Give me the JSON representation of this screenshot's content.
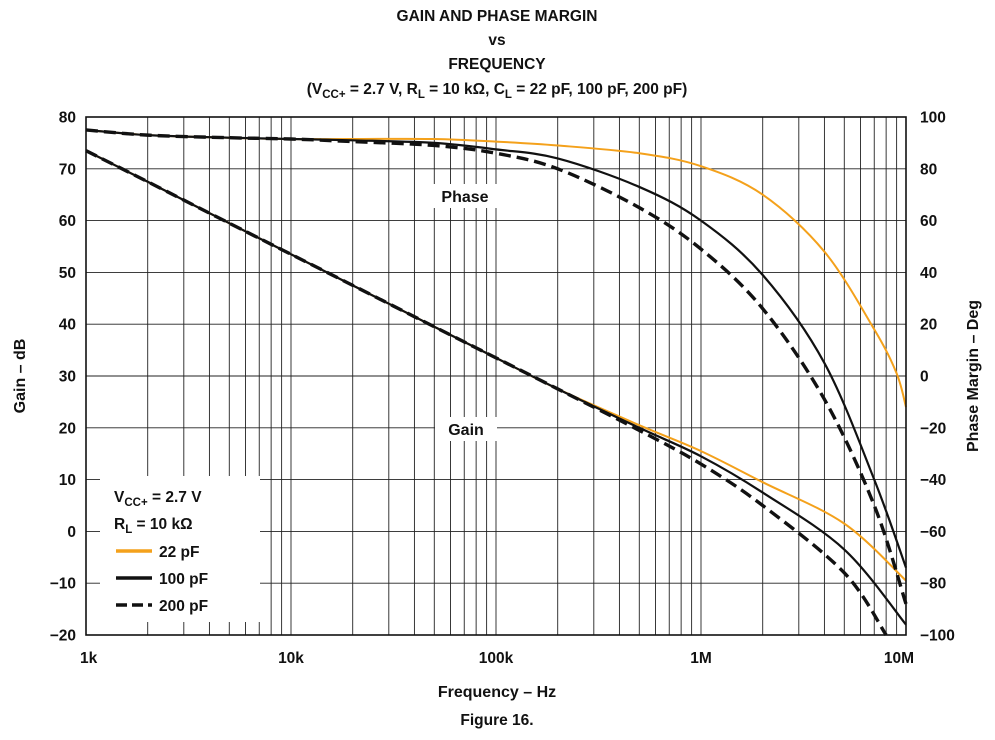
{
  "chart_data": {
    "type": "line",
    "title": {
      "line1": "GAIN AND PHASE MARGIN",
      "line2": "vs",
      "line3": "FREQUENCY",
      "conditions": [
        "(V",
        "CC+",
        " = 2.7 V, R",
        "L",
        " = 10 kΩ, C",
        "L",
        " = 22 pF, 100 pF, 200 pF)"
      ]
    },
    "figure_label": "Figure 16.",
    "x_axis": {
      "label": "Frequency – Hz",
      "scale": "log",
      "range": [
        1000,
        10000000
      ],
      "ticks": [
        {
          "value": 1000,
          "label": "1k"
        },
        {
          "value": 10000,
          "label": "10k"
        },
        {
          "value": 100000,
          "label": "100k"
        },
        {
          "value": 1000000,
          "label": "1M"
        },
        {
          "value": 10000000,
          "label": "10M"
        }
      ]
    },
    "y_left": {
      "label": "Gain – dB",
      "range": [
        -20,
        80
      ],
      "ticks": [
        {
          "value": 80,
          "label": "80"
        },
        {
          "value": 70,
          "label": "70"
        },
        {
          "value": 60,
          "label": "60"
        },
        {
          "value": 50,
          "label": "50"
        },
        {
          "value": 40,
          "label": "40"
        },
        {
          "value": 30,
          "label": "30"
        },
        {
          "value": 20,
          "label": "20"
        },
        {
          "value": 10,
          "label": "10"
        },
        {
          "value": 0,
          "label": "0"
        },
        {
          "value": -10,
          "label": "−10"
        },
        {
          "value": -20,
          "label": "−20"
        }
      ]
    },
    "y_right": {
      "label": "Phase Margin – Deg",
      "range": [
        -100,
        100
      ],
      "ticks": [
        {
          "value": 100,
          "label": "100"
        },
        {
          "value": 80,
          "label": "80"
        },
        {
          "value": 60,
          "label": "60"
        },
        {
          "value": 40,
          "label": "40"
        },
        {
          "value": 20,
          "label": "20"
        },
        {
          "value": 0,
          "label": "0"
        },
        {
          "value": -20,
          "label": "−20"
        },
        {
          "value": -40,
          "label": "−40"
        },
        {
          "value": -60,
          "label": "−60"
        },
        {
          "value": -80,
          "label": "−80"
        },
        {
          "value": -100,
          "label": "−100"
        }
      ]
    },
    "grid": true,
    "annotations": {
      "phase": "Phase",
      "gain": "Gain"
    },
    "legend": {
      "placement": "bottom-left",
      "condition1": [
        "V",
        "CC+",
        " = 2.7 V"
      ],
      "condition2": [
        "R",
        "L",
        " = 10 kΩ"
      ]
    },
    "series": [
      {
        "name": "22 pF",
        "quantity": "gain",
        "axis": "left",
        "color": "#f4a11b",
        "style": "solid",
        "points": [
          [
            1000,
            73.5
          ],
          [
            2000,
            67.5
          ],
          [
            5000,
            59.5
          ],
          [
            10000,
            53.5
          ],
          [
            20000,
            47.5
          ],
          [
            50000,
            39.5
          ],
          [
            100000,
            33.5
          ],
          [
            200000,
            27.5
          ],
          [
            500000,
            20.5
          ],
          [
            1000000,
            15.5
          ],
          [
            2000000,
            9.5
          ],
          [
            5000000,
            1.5
          ],
          [
            10000000,
            -9.5
          ]
        ]
      },
      {
        "name": "100 pF",
        "quantity": "gain",
        "axis": "left",
        "color": "#111111",
        "style": "solid",
        "points": [
          [
            1000,
            73.5
          ],
          [
            2000,
            67.5
          ],
          [
            5000,
            59.5
          ],
          [
            10000,
            53.5
          ],
          [
            20000,
            47.5
          ],
          [
            50000,
            39.5
          ],
          [
            100000,
            33.5
          ],
          [
            200000,
            27.5
          ],
          [
            500000,
            20
          ],
          [
            1000000,
            14.5
          ],
          [
            2000000,
            7.5
          ],
          [
            5000000,
            -3.5
          ],
          [
            10000000,
            -18
          ]
        ]
      },
      {
        "name": "200 pF",
        "quantity": "gain",
        "axis": "left",
        "color": "#111111",
        "style": "dashed",
        "points": [
          [
            1000,
            73.5
          ],
          [
            2000,
            67.5
          ],
          [
            5000,
            59.5
          ],
          [
            10000,
            53.5
          ],
          [
            20000,
            47.5
          ],
          [
            50000,
            39.5
          ],
          [
            100000,
            33.5
          ],
          [
            200000,
            27.5
          ],
          [
            500000,
            19.5
          ],
          [
            1000000,
            13
          ],
          [
            2000000,
            5
          ],
          [
            5000000,
            -8
          ],
          [
            8000000,
            -20
          ]
        ]
      },
      {
        "name": "22 pF",
        "quantity": "phase",
        "axis": "right",
        "color": "#f4a11b",
        "style": "solid",
        "points": [
          [
            1000,
            95
          ],
          [
            2000,
            93
          ],
          [
            5000,
            92
          ],
          [
            10000,
            91.5
          ],
          [
            20000,
            91.5
          ],
          [
            50000,
            91.5
          ],
          [
            100000,
            90.5
          ],
          [
            200000,
            89
          ],
          [
            500000,
            86
          ],
          [
            1000000,
            81
          ],
          [
            2000000,
            70
          ],
          [
            4000000,
            48
          ],
          [
            7000000,
            18
          ],
          [
            9000000,
            1
          ],
          [
            10000000,
            -12
          ]
        ]
      },
      {
        "name": "100 pF",
        "quantity": "phase",
        "axis": "right",
        "color": "#111111",
        "style": "solid",
        "points": [
          [
            1000,
            95
          ],
          [
            2000,
            93
          ],
          [
            5000,
            92
          ],
          [
            10000,
            91.5
          ],
          [
            20000,
            91
          ],
          [
            50000,
            90
          ],
          [
            100000,
            87.5
          ],
          [
            200000,
            84
          ],
          [
            500000,
            73
          ],
          [
            1000000,
            60
          ],
          [
            2000000,
            39
          ],
          [
            4000000,
            5
          ],
          [
            7000000,
            -40
          ],
          [
            10000000,
            -74
          ]
        ]
      },
      {
        "name": "200 pF",
        "quantity": "phase",
        "axis": "right",
        "color": "#111111",
        "style": "dashed",
        "points": [
          [
            1000,
            95
          ],
          [
            2000,
            93
          ],
          [
            5000,
            92
          ],
          [
            10000,
            91.5
          ],
          [
            20000,
            90.5
          ],
          [
            50000,
            89
          ],
          [
            100000,
            86
          ],
          [
            200000,
            80
          ],
          [
            500000,
            65
          ],
          [
            1000000,
            49
          ],
          [
            2000000,
            26
          ],
          [
            4000000,
            -9
          ],
          [
            7000000,
            -50
          ],
          [
            10000000,
            -88
          ]
        ]
      }
    ]
  }
}
